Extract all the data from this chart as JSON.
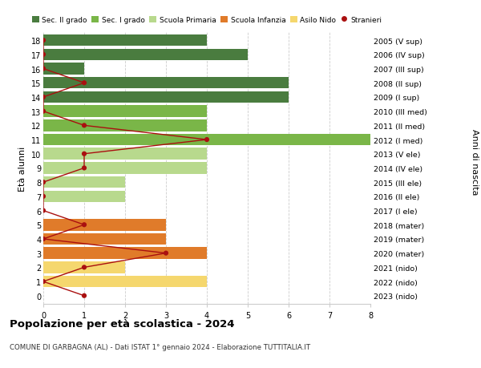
{
  "ages": [
    18,
    17,
    16,
    15,
    14,
    13,
    12,
    11,
    10,
    9,
    8,
    7,
    6,
    5,
    4,
    3,
    2,
    1,
    0
  ],
  "right_labels": [
    "2005 (V sup)",
    "2006 (IV sup)",
    "2007 (III sup)",
    "2008 (II sup)",
    "2009 (I sup)",
    "2010 (III med)",
    "2011 (II med)",
    "2012 (I med)",
    "2013 (V ele)",
    "2014 (IV ele)",
    "2015 (III ele)",
    "2016 (II ele)",
    "2017 (I ele)",
    "2018 (mater)",
    "2019 (mater)",
    "2020 (mater)",
    "2021 (nido)",
    "2022 (nido)",
    "2023 (nido)"
  ],
  "bar_values": [
    4,
    5,
    1,
    6,
    6,
    4,
    4,
    8,
    4,
    4,
    2,
    2,
    0,
    3,
    3,
    4,
    2,
    4,
    0
  ],
  "bar_colors": [
    "#4a7c3f",
    "#4a7c3f",
    "#4a7c3f",
    "#4a7c3f",
    "#4a7c3f",
    "#7ab648",
    "#7ab648",
    "#7ab648",
    "#b8d98d",
    "#b8d98d",
    "#b8d98d",
    "#b8d98d",
    "#b8d98d",
    "#e07b2a",
    "#e07b2a",
    "#e07b2a",
    "#f5d76e",
    "#f5d76e",
    "#f5d76e"
  ],
  "stranieri_values": [
    0,
    0,
    0,
    1,
    0,
    0,
    1,
    4,
    1,
    1,
    0,
    0,
    0,
    1,
    0,
    3,
    1,
    0,
    1
  ],
  "legend_labels": [
    "Sec. II grado",
    "Sec. I grado",
    "Scuola Primaria",
    "Scuola Infanzia",
    "Asilo Nido",
    "Stranieri"
  ],
  "legend_colors": [
    "#4a7c3f",
    "#7ab648",
    "#b8d98d",
    "#e07b2a",
    "#f5d76e",
    "#aa1010"
  ],
  "title": "Popolazione per età scolastica - 2024",
  "subtitle": "COMUNE DI GARBAGNA (AL) - Dati ISTAT 1° gennaio 2024 - Elaborazione TUTTITALIA.IT",
  "ylabel_left": "Età alunni",
  "ylabel_right": "Anni di nascita",
  "xlim": [
    0,
    8
  ],
  "background_color": "#ffffff",
  "grid_color": "#cccccc",
  "stranieri_color": "#aa1010"
}
